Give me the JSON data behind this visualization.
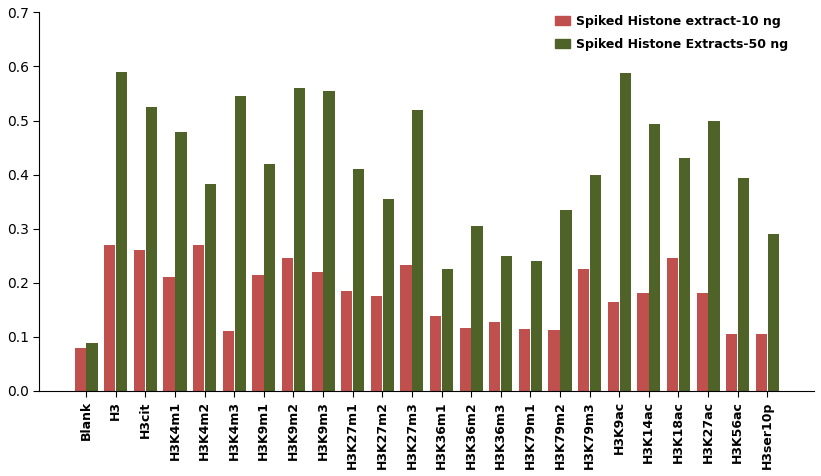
{
  "categories": [
    "Blank",
    "H3",
    "H3cit",
    "H3K4m1",
    "H3K4m2",
    "H3K4m3",
    "H3K9m1",
    "H3K9m2",
    "H3K9m3",
    "H3K27m1",
    "H3K27m2",
    "H3K27m3",
    "H3K36m1",
    "H3K36m2",
    "H3K36m3",
    "H3K79m1",
    "H3K79m2",
    "H3K79m3",
    "H3K9ac",
    "H3K14ac",
    "H3K18ac",
    "H3K27ac",
    "H3K56ac",
    "H3ser10p"
  ],
  "series_10ng": [
    0.08,
    0.27,
    0.26,
    0.21,
    0.27,
    0.11,
    0.215,
    0.245,
    0.22,
    0.185,
    0.175,
    0.233,
    0.138,
    0.116,
    0.128,
    0.114,
    0.113,
    0.225,
    0.165,
    0.18,
    0.245,
    0.18,
    0.105,
    0.105
  ],
  "series_50ng": [
    0.088,
    0.59,
    0.525,
    0.478,
    0.383,
    0.545,
    0.42,
    0.56,
    0.555,
    0.41,
    0.355,
    0.52,
    0.225,
    0.305,
    0.25,
    0.24,
    0.335,
    0.4,
    0.588,
    0.493,
    0.43,
    0.5,
    0.393,
    0.29
  ],
  "color_10ng": "#c0504d",
  "color_50ng": "#4f6228",
  "legend_10ng": "Spiked Histone extract-10 ng",
  "legend_50ng": "Spiked Histone Extracts-50 ng",
  "ylim": [
    0,
    0.7
  ],
  "yticks": [
    0,
    0.1,
    0.2,
    0.3,
    0.4,
    0.5,
    0.6,
    0.7
  ]
}
